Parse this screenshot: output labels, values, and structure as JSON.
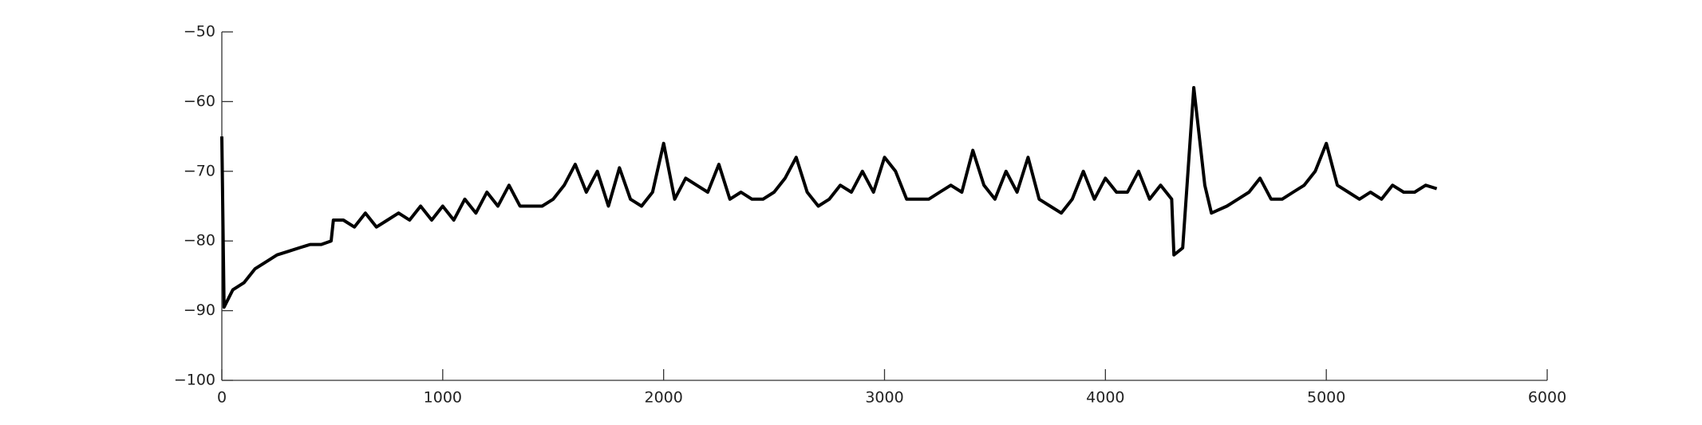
{
  "chart_data": {
    "type": "line",
    "x": [
      0,
      10,
      50,
      100,
      150,
      200,
      250,
      300,
      350,
      400,
      450,
      495,
      505,
      550,
      600,
      650,
      700,
      750,
      800,
      850,
      900,
      950,
      1000,
      1050,
      1100,
      1150,
      1200,
      1250,
      1300,
      1350,
      1400,
      1450,
      1500,
      1550,
      1600,
      1650,
      1700,
      1750,
      1800,
      1850,
      1900,
      1950,
      2000,
      2050,
      2100,
      2150,
      2200,
      2250,
      2300,
      2350,
      2400,
      2450,
      2500,
      2550,
      2600,
      2650,
      2700,
      2750,
      2800,
      2850,
      2900,
      2950,
      3000,
      3050,
      3100,
      3150,
      3200,
      3250,
      3300,
      3350,
      3400,
      3450,
      3500,
      3550,
      3600,
      3650,
      3700,
      3750,
      3800,
      3850,
      3900,
      3950,
      4000,
      4050,
      4100,
      4150,
      4200,
      4250,
      4300,
      4310,
      4350,
      4400,
      4450,
      4480,
      4550,
      4600,
      4650,
      4700,
      4750,
      4800,
      4850,
      4900,
      4950,
      5000,
      5050,
      5100,
      5150,
      5200,
      5250,
      5300,
      5350,
      5400,
      5450,
      5500
    ],
    "series": [
      {
        "color": "#000000",
        "values": [
          -65,
          -89.5,
          -87,
          -86,
          -84,
          -83,
          -82,
          -81.5,
          -81,
          -80.5,
          -80.5,
          -80,
          -77,
          -77,
          -78,
          -76,
          -78,
          -77,
          -76,
          -77,
          -75,
          -77,
          -75,
          -77,
          -74,
          -76,
          -73,
          -75,
          -72,
          -75,
          -75,
          -75,
          -74,
          -72,
          -69,
          -73,
          -70,
          -75,
          -69.5,
          -74,
          -75,
          -73,
          -66,
          -74,
          -71,
          -72,
          -73,
          -69,
          -74,
          -73,
          -74,
          -74,
          -73,
          -71,
          -68,
          -73,
          -75,
          -74,
          -72,
          -73,
          -70,
          -73,
          -68,
          -70,
          -74,
          -74,
          -74,
          -73,
          -72,
          -73,
          -67,
          -72,
          -74,
          -70,
          -73,
          -68,
          -74,
          -75,
          -76,
          -74,
          -70,
          -74,
          -71,
          -73,
          -73,
          -70,
          -74,
          -72,
          -74,
          -82,
          -81,
          -58,
          -72,
          -76,
          -75,
          -74,
          -73,
          -71,
          -74,
          -74,
          -73,
          -72,
          -70,
          -66,
          -72,
          -73,
          -74,
          -73,
          -74,
          -72,
          -73,
          -73,
          -72,
          -72.5
        ]
      }
    ],
    "xlim": [
      0,
      6000
    ],
    "xticks": [
      0,
      1000,
      2000,
      3000,
      4000,
      5000,
      6000
    ],
    "ylim": [
      -100,
      -50
    ],
    "yticks": [
      {
        "value": -100,
        "label": "−100"
      },
      {
        "value": -90,
        "label": "−90"
      },
      {
        "value": -80,
        "label": "−80"
      },
      {
        "value": -70,
        "label": "−70"
      },
      {
        "value": -60,
        "label": "−60"
      },
      {
        "value": -50,
        "label": "−50"
      }
    ],
    "grid": false
  }
}
